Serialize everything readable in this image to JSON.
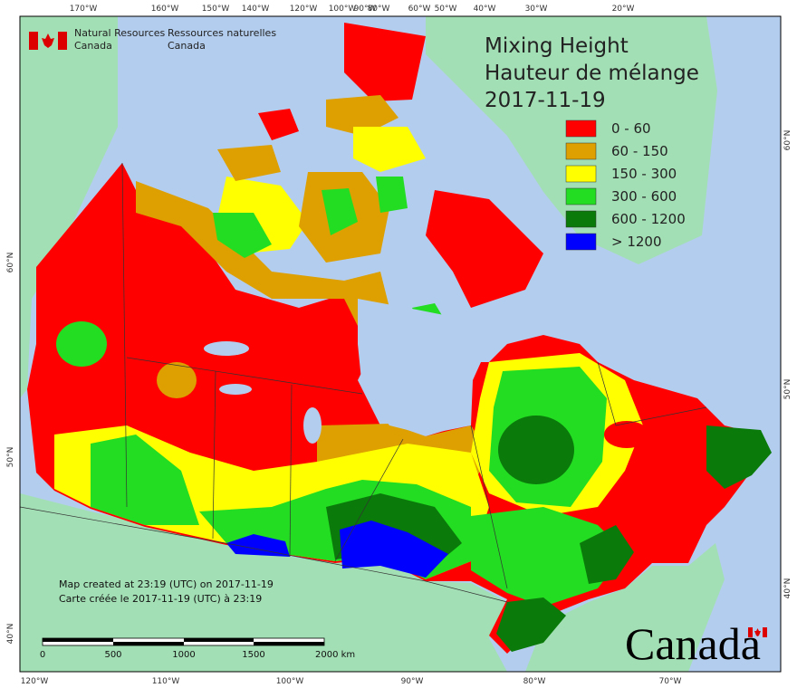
{
  "header": {
    "org_en": [
      "Natural Resources",
      "Canada"
    ],
    "org_fr": [
      "Ressources naturelles",
      "Canada"
    ]
  },
  "title": {
    "lines": [
      "Mixing Height",
      "Hauteur de mélange",
      "2017-11-19"
    ]
  },
  "legend": {
    "items": [
      {
        "label": "0 - 60",
        "color": "#ff0000"
      },
      {
        "label": "60 - 150",
        "color": "#dda000"
      },
      {
        "label": "150 - 300",
        "color": "#ffff00"
      },
      {
        "label": "300 - 600",
        "color": "#22dd22"
      },
      {
        "label": "600 - 1200",
        "color": "#0a7a0a"
      },
      {
        "label": "> 1200",
        "color": "#0000ff"
      }
    ]
  },
  "graticule": {
    "top": [
      "170°W",
      "160°W",
      "150°W",
      "140°W",
      "120°W",
      "100°W",
      "90°W",
      "80°W",
      "60°W",
      "50°W",
      "40°W",
      "30°W",
      "20°W"
    ],
    "bottom": [
      "120°W",
      "110°W",
      "100°W",
      "90°W",
      "80°W",
      "70°W"
    ],
    "left": [
      "60°N",
      "50°N",
      "40°N"
    ],
    "right": [
      "60°N",
      "50°N",
      "40°N"
    ]
  },
  "footer": {
    "lines": [
      "Map created at 23:19 (UTC) on 2017-11-19",
      "Carte créée le 2017-11-19 (UTC) à 23:19"
    ]
  },
  "scale_bar": {
    "labels": [
      "0",
      "500",
      "1000",
      "1500",
      "2000 km"
    ]
  },
  "wordmark": "Canada"
}
